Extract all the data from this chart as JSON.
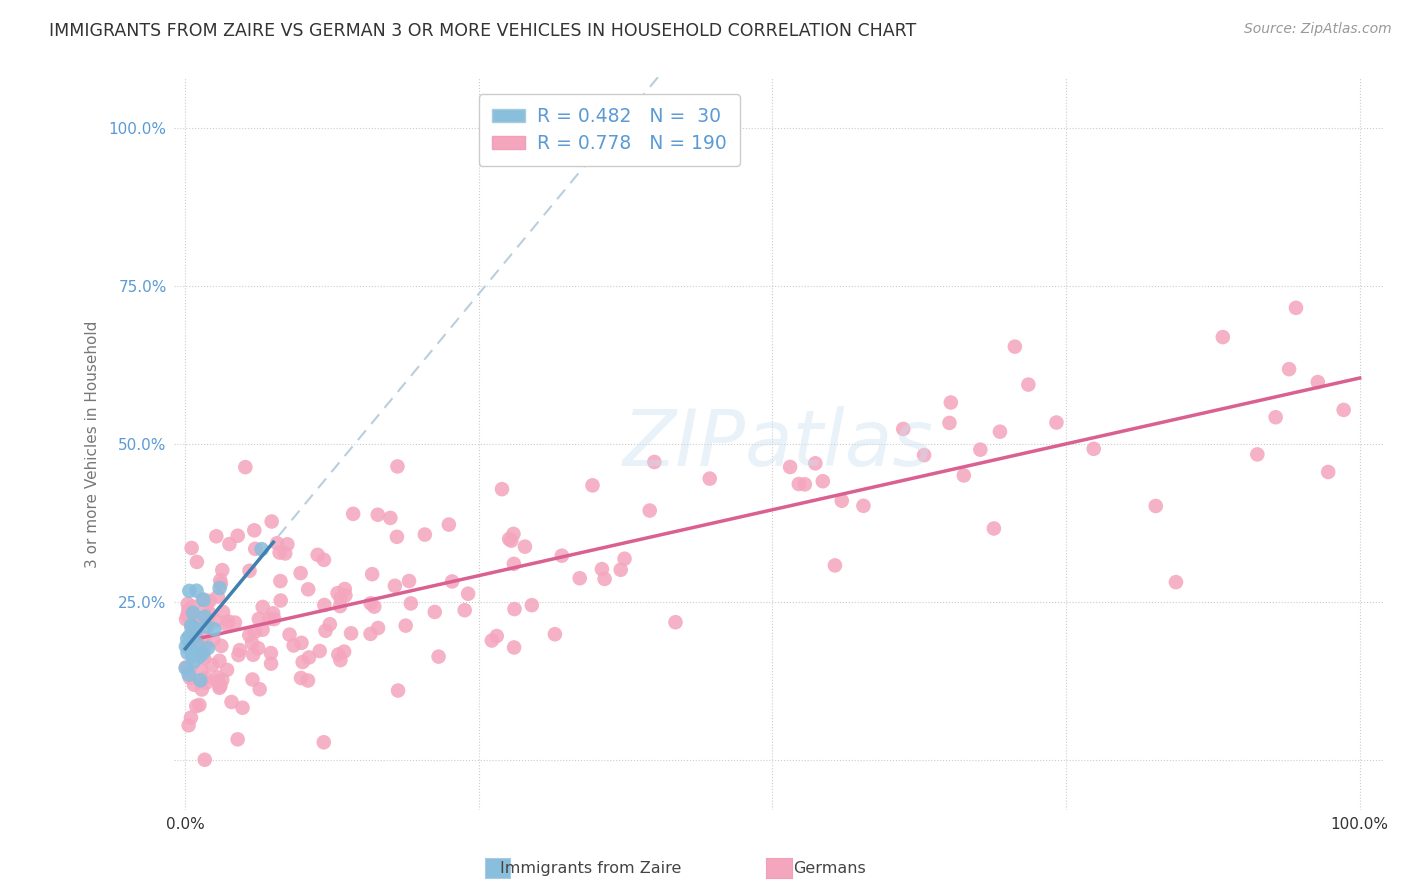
{
  "title": "IMMIGRANTS FROM ZAIRE VS GERMAN 3 OR MORE VEHICLES IN HOUSEHOLD CORRELATION CHART",
  "source": "Source: ZipAtlas.com",
  "ylabel": "3 or more Vehicles in Household",
  "blue_R": 0.482,
  "blue_N": 30,
  "pink_R": 0.778,
  "pink_N": 190,
  "blue_color": "#89bedc",
  "pink_color": "#f4a6be",
  "blue_line_color": "#4080b0",
  "pink_line_color": "#d96090",
  "blue_dash_color": "#b8cfe0",
  "legend_color": "#5b9bd5",
  "watermark_color": "#c5d8ea",
  "background_color": "#ffffff",
  "grid_color": "#cccccc",
  "title_color": "#333333",
  "source_color": "#999999",
  "tick_color_y": "#5b9bd5",
  "tick_color_x": "#333333",
  "ylabel_color": "#777777"
}
